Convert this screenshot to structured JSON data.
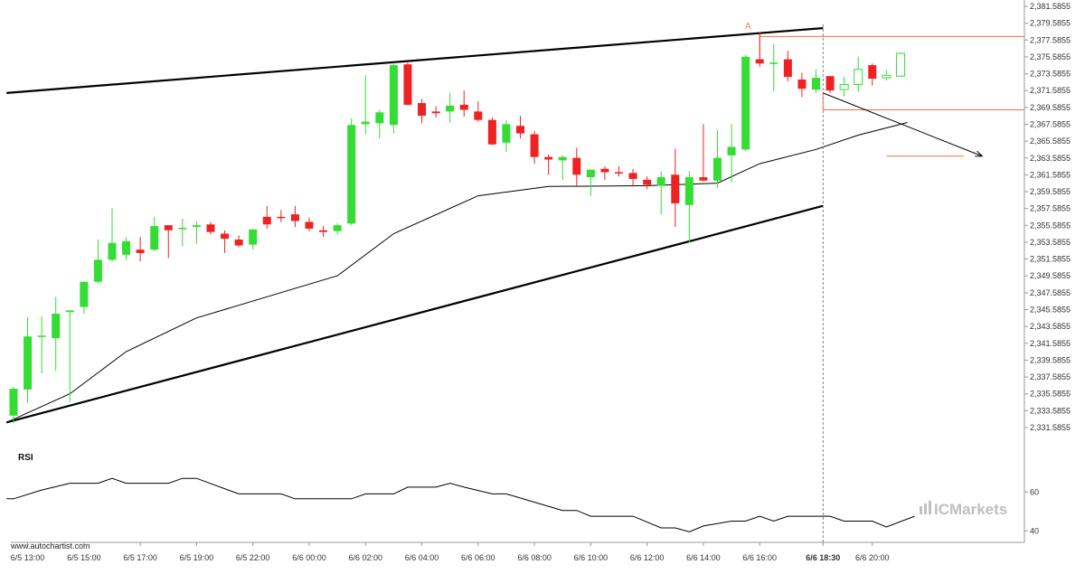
{
  "watermark": "www.autochartist.com",
  "brand": "ICMarkets",
  "rsi_title": "RSI",
  "pattern_label": "A",
  "colors": {
    "bull": "#33dd33",
    "bear": "#ee2222",
    "pattern_line": "#000000",
    "level_line": "#f07040",
    "ma_line": "#000000",
    "axis_line": "#999999"
  },
  "chart_data": {
    "type": "candlestick",
    "title": "",
    "xlabel": "",
    "ylabel": "",
    "ylim": [
      2331.5855,
      2381.5855
    ],
    "y_ticks": [
      "2,381.5855",
      "2,379.5855",
      "2,377.5855",
      "2,375.5855",
      "2,373.5855",
      "2,371.5855",
      "2,369.5855",
      "2,367.5855",
      "2,365.5855",
      "2,363.5855",
      "2,361.5855",
      "2,359.5855",
      "2,357.5855",
      "2,355.5855",
      "2,353.5855",
      "2,351.5855",
      "2,349.5855",
      "2,347.5855",
      "2,345.5855",
      "2,343.5855",
      "2,341.5855",
      "2,339.5855",
      "2,337.5855",
      "2,335.5855",
      "2,333.5855",
      "2,331.5855"
    ],
    "x_ticks": [
      {
        "label": "6/5 13:00",
        "index": 1
      },
      {
        "label": "6/5 15:00",
        "index": 5
      },
      {
        "label": "6/5 17:00",
        "index": 9
      },
      {
        "label": "6/5 19:00",
        "index": 13
      },
      {
        "label": "6/5 22:00",
        "index": 17
      },
      {
        "label": "6/6 00:00",
        "index": 21
      },
      {
        "label": "6/6 02:00",
        "index": 25
      },
      {
        "label": "6/6 04:00",
        "index": 29
      },
      {
        "label": "6/6 06:00",
        "index": 33
      },
      {
        "label": "6/6 08:00",
        "index": 37
      },
      {
        "label": "6/6 10:00",
        "index": 41
      },
      {
        "label": "6/6 12:00",
        "index": 45
      },
      {
        "label": "6/6 14:00",
        "index": 49
      },
      {
        "label": "6/6 16:00",
        "index": 53
      },
      {
        "label": "6/6 18:30",
        "index": 57.5,
        "bold": true
      },
      {
        "label": "6/6 20:00",
        "index": 61
      }
    ],
    "candles": [
      {
        "o": 2333.0,
        "h": 2336.4,
        "l": 2332.1,
        "c": 2336.2
      },
      {
        "o": 2336.1,
        "h": 2344.7,
        "l": 2334.5,
        "c": 2342.4
      },
      {
        "o": 2342.4,
        "h": 2344.8,
        "l": 2338.0,
        "c": 2342.5
      },
      {
        "o": 2342.2,
        "h": 2347.1,
        "l": 2338.3,
        "c": 2345.1
      },
      {
        "o": 2345.3,
        "h": 2345.4,
        "l": 2334.6,
        "c": 2345.5
      },
      {
        "o": 2345.9,
        "h": 2348.7,
        "l": 2345.1,
        "c": 2348.9
      },
      {
        "o": 2348.9,
        "h": 2353.9,
        "l": 2348.7,
        "c": 2351.5
      },
      {
        "o": 2351.5,
        "h": 2357.6,
        "l": 2351.3,
        "c": 2353.5
      },
      {
        "o": 2352.1,
        "h": 2354.2,
        "l": 2351.4,
        "c": 2353.7
      },
      {
        "o": 2352.7,
        "h": 2354.2,
        "l": 2351.3,
        "c": 2352.3
      },
      {
        "o": 2352.7,
        "h": 2356.6,
        "l": 2352.5,
        "c": 2355.5
      },
      {
        "o": 2355.6,
        "h": 2355.6,
        "l": 2351.7,
        "c": 2355.0
      },
      {
        "o": 2355.2,
        "h": 2356.4,
        "l": 2353.1,
        "c": 2355.3
      },
      {
        "o": 2355.4,
        "h": 2356.1,
        "l": 2353.4,
        "c": 2355.6
      },
      {
        "o": 2355.7,
        "h": 2356.0,
        "l": 2354.5,
        "c": 2354.8
      },
      {
        "o": 2354.6,
        "h": 2355.0,
        "l": 2352.3,
        "c": 2354.0
      },
      {
        "o": 2353.9,
        "h": 2354.4,
        "l": 2353.0,
        "c": 2353.2
      },
      {
        "o": 2353.3,
        "h": 2355.1,
        "l": 2352.7,
        "c": 2355.1
      },
      {
        "o": 2356.6,
        "h": 2357.9,
        "l": 2355.2,
        "c": 2355.7
      },
      {
        "o": 2356.6,
        "h": 2357.4,
        "l": 2356.0,
        "c": 2356.5
      },
      {
        "o": 2356.9,
        "h": 2357.9,
        "l": 2355.4,
        "c": 2356.1
      },
      {
        "o": 2356.0,
        "h": 2356.5,
        "l": 2354.9,
        "c": 2355.2
      },
      {
        "o": 2355.0,
        "h": 2355.5,
        "l": 2354.2,
        "c": 2354.8
      },
      {
        "o": 2354.9,
        "h": 2355.8,
        "l": 2354.5,
        "c": 2355.6
      },
      {
        "o": 2355.8,
        "h": 2368.3,
        "l": 2355.6,
        "c": 2367.5
      },
      {
        "o": 2367.6,
        "h": 2373.4,
        "l": 2366.4,
        "c": 2367.9
      },
      {
        "o": 2367.7,
        "h": 2369.3,
        "l": 2365.9,
        "c": 2369.0
      },
      {
        "o": 2367.5,
        "h": 2374.9,
        "l": 2366.5,
        "c": 2374.6
      },
      {
        "o": 2374.7,
        "h": 2374.9,
        "l": 2369.8,
        "c": 2369.9
      },
      {
        "o": 2370.1,
        "h": 2370.6,
        "l": 2367.7,
        "c": 2368.6
      },
      {
        "o": 2369.1,
        "h": 2369.7,
        "l": 2368.4,
        "c": 2368.9
      },
      {
        "o": 2369.1,
        "h": 2371.3,
        "l": 2367.8,
        "c": 2369.8
      },
      {
        "o": 2369.9,
        "h": 2371.6,
        "l": 2368.5,
        "c": 2369.3
      },
      {
        "o": 2369.1,
        "h": 2370.3,
        "l": 2367.9,
        "c": 2368.1
      },
      {
        "o": 2368.1,
        "h": 2368.4,
        "l": 2365.1,
        "c": 2365.2
      },
      {
        "o": 2365.4,
        "h": 2368.1,
        "l": 2364.3,
        "c": 2367.6
      },
      {
        "o": 2367.4,
        "h": 2368.6,
        "l": 2365.9,
        "c": 2366.5
      },
      {
        "o": 2366.4,
        "h": 2366.8,
        "l": 2362.9,
        "c": 2363.7
      },
      {
        "o": 2363.7,
        "h": 2364.0,
        "l": 2361.6,
        "c": 2363.4
      },
      {
        "o": 2363.3,
        "h": 2363.9,
        "l": 2361.0,
        "c": 2363.7
      },
      {
        "o": 2363.6,
        "h": 2364.8,
        "l": 2360.3,
        "c": 2361.6
      },
      {
        "o": 2361.3,
        "h": 2362.0,
        "l": 2359.1,
        "c": 2362.2
      },
      {
        "o": 2362.3,
        "h": 2362.6,
        "l": 2361.0,
        "c": 2361.9
      },
      {
        "o": 2361.9,
        "h": 2362.6,
        "l": 2361.4,
        "c": 2361.8
      },
      {
        "o": 2361.8,
        "h": 2362.3,
        "l": 2360.2,
        "c": 2361.1
      },
      {
        "o": 2361.0,
        "h": 2361.4,
        "l": 2359.9,
        "c": 2360.4
      },
      {
        "o": 2360.3,
        "h": 2362.0,
        "l": 2356.9,
        "c": 2361.3
      },
      {
        "o": 2361.6,
        "h": 2364.7,
        "l": 2355.4,
        "c": 2358.2
      },
      {
        "o": 2358.0,
        "h": 2362.0,
        "l": 2353.6,
        "c": 2361.3
      },
      {
        "o": 2361.3,
        "h": 2367.6,
        "l": 2360.8,
        "c": 2360.9
      },
      {
        "o": 2360.9,
        "h": 2366.9,
        "l": 2360.0,
        "c": 2363.6
      },
      {
        "o": 2363.9,
        "h": 2367.6,
        "l": 2360.7,
        "c": 2364.9
      },
      {
        "o": 2364.6,
        "h": 2375.8,
        "l": 2364.4,
        "c": 2375.6
      },
      {
        "o": 2375.3,
        "h": 2378.5,
        "l": 2374.4,
        "c": 2374.8
      },
      {
        "o": 2374.9,
        "h": 2377.1,
        "l": 2371.5,
        "c": 2374.9
      },
      {
        "o": 2375.3,
        "h": 2376.3,
        "l": 2372.7,
        "c": 2373.2
      },
      {
        "o": 2372.9,
        "h": 2373.7,
        "l": 2370.8,
        "c": 2371.8
      },
      {
        "o": 2371.7,
        "h": 2374.1,
        "l": 2371.3,
        "c": 2373.1
      },
      {
        "o": 2373.3,
        "h": 2373.3,
        "l": 2371.3,
        "c": 2371.6
      },
      {
        "o": 2371.7,
        "h": 2373.2,
        "l": 2370.9,
        "c": 2372.3
      },
      {
        "o": 2372.3,
        "h": 2375.6,
        "l": 2371.4,
        "c": 2374.1
      },
      {
        "o": 2374.6,
        "h": 2374.8,
        "l": 2372.2,
        "c": 2373.0
      },
      {
        "o": 2373.1,
        "h": 2374.0,
        "l": 2372.8,
        "c": 2373.4
      },
      {
        "o": 2373.3,
        "h": 2376.1,
        "l": 2373.2,
        "c": 2376.0
      }
    ],
    "moving_average": [
      {
        "i": -0.5,
        "v": 2332.2
      },
      {
        "i": 4,
        "v": 2335.6
      },
      {
        "i": 8,
        "v": 2340.6
      },
      {
        "i": 13,
        "v": 2344.6
      },
      {
        "i": 19,
        "v": 2347.6
      },
      {
        "i": 23,
        "v": 2349.6
      },
      {
        "i": 27,
        "v": 2354.6
      },
      {
        "i": 33,
        "v": 2359.1
      },
      {
        "i": 38,
        "v": 2360.2
      },
      {
        "i": 45,
        "v": 2360.3
      },
      {
        "i": 50,
        "v": 2360.6
      },
      {
        "i": 53,
        "v": 2362.9
      },
      {
        "i": 57,
        "v": 2364.6
      },
      {
        "i": 60,
        "v": 2366.3
      },
      {
        "i": 63.5,
        "v": 2367.8
      }
    ],
    "rsi": {
      "ylim": [
        35,
        75
      ],
      "ticks": [
        60,
        40
      ],
      "values": [
        {
          "i": -0.5,
          "v": 56.5
        },
        {
          "i": 0,
          "v": 56.5
        },
        {
          "i": 2,
          "v": 61
        },
        {
          "i": 4,
          "v": 64.5
        },
        {
          "i": 6,
          "v": 64.5
        },
        {
          "i": 7,
          "v": 67
        },
        {
          "i": 8,
          "v": 64.5
        },
        {
          "i": 11,
          "v": 64.5
        },
        {
          "i": 12,
          "v": 67
        },
        {
          "i": 13,
          "v": 67
        },
        {
          "i": 16,
          "v": 59
        },
        {
          "i": 19,
          "v": 59
        },
        {
          "i": 20,
          "v": 56.5
        },
        {
          "i": 24,
          "v": 56.5
        },
        {
          "i": 25,
          "v": 59
        },
        {
          "i": 27,
          "v": 59
        },
        {
          "i": 28,
          "v": 62.5
        },
        {
          "i": 30,
          "v": 62.5
        },
        {
          "i": 31,
          "v": 64.5
        },
        {
          "i": 32,
          "v": 62.5
        },
        {
          "i": 34,
          "v": 59
        },
        {
          "i": 35,
          "v": 59
        },
        {
          "i": 39,
          "v": 50.5
        },
        {
          "i": 40,
          "v": 50.5
        },
        {
          "i": 41,
          "v": 47.5
        },
        {
          "i": 44,
          "v": 47.5
        },
        {
          "i": 46,
          "v": 41.5
        },
        {
          "i": 47,
          "v": 41.5
        },
        {
          "i": 48,
          "v": 39.5
        },
        {
          "i": 49,
          "v": 42.5
        },
        {
          "i": 51,
          "v": 45
        },
        {
          "i": 52,
          "v": 45
        },
        {
          "i": 53,
          "v": 47.5
        },
        {
          "i": 54,
          "v": 45
        },
        {
          "i": 55,
          "v": 47.5
        },
        {
          "i": 58,
          "v": 47.5
        },
        {
          "i": 59,
          "v": 45
        },
        {
          "i": 61,
          "v": 45
        },
        {
          "i": 62,
          "v": 42
        },
        {
          "i": 64,
          "v": 47.5
        }
      ]
    },
    "pattern": {
      "name": "Rising Wedge",
      "upper_line": [
        {
          "i": -0.5,
          "v": 2371.3
        },
        {
          "i": 57.5,
          "v": 2379.0
        }
      ],
      "lower_line": [
        {
          "i": -0.5,
          "v": 2332.2
        },
        {
          "i": 57.5,
          "v": 2357.9
        }
      ],
      "breakout_index": 57.5
    },
    "levels": {
      "resistance": {
        "from": 53,
        "to": 72,
        "v": 2378.0
      },
      "current": {
        "from": 57.5,
        "to": 72,
        "v": 2369.3
      },
      "target": {
        "from": 62,
        "to": 67.5,
        "v": 2363.8
      }
    },
    "forecast_arrow": [
      {
        "i": 57.5,
        "v": 2371.3
      },
      {
        "i": 68.8,
        "v": 2363.8
      }
    ]
  }
}
